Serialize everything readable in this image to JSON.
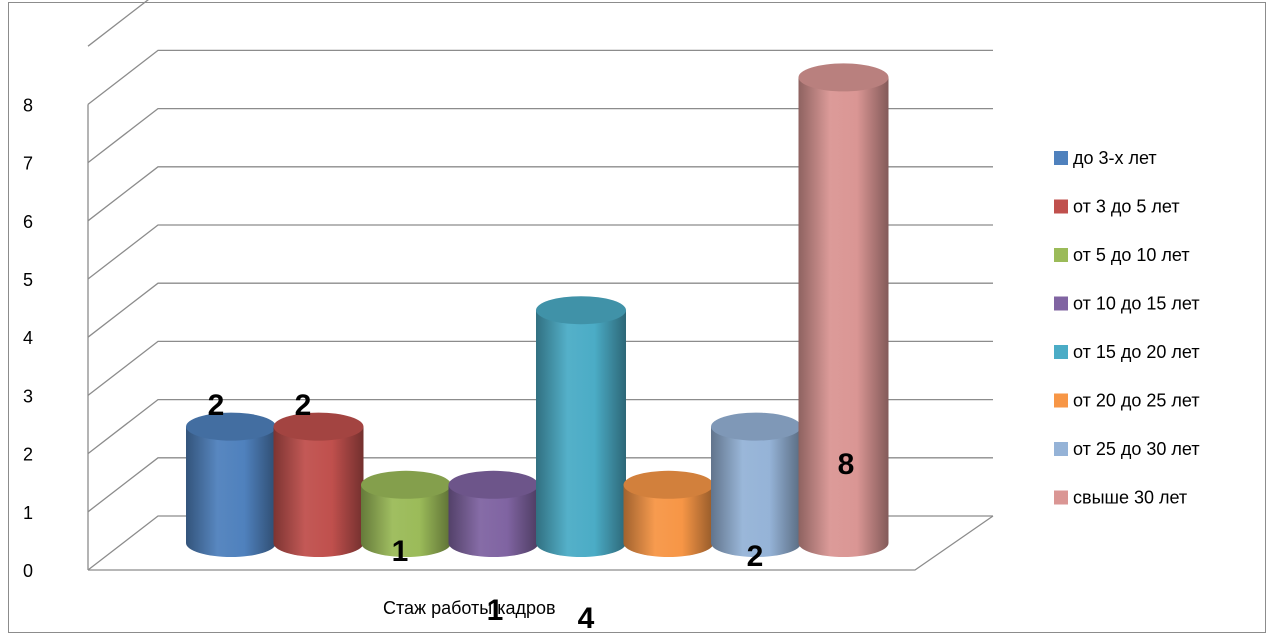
{
  "chart_data": {
    "type": "bar",
    "xlabel": "Стаж работы кадров",
    "ylim": [
      0,
      8
    ],
    "yticks": [
      "0",
      "1",
      "2",
      "3",
      "4",
      "5",
      "6",
      "7",
      "8"
    ],
    "series": [
      {
        "name": "до 3-х лет",
        "value": 2,
        "color": "#4f81bd",
        "label": "2"
      },
      {
        "name": "от 3 до 5 лет",
        "value": 2,
        "color": "#c0504d",
        "label": "2"
      },
      {
        "name": "от 5 до 10 лет",
        "value": 1,
        "color": "#9bbb59",
        "label": "1"
      },
      {
        "name": "от 10 до 15 лет",
        "value": 1,
        "color": "#8064a2",
        "label": "1"
      },
      {
        "name": "от 15 до 20 лет",
        "value": 4,
        "color": "#4bacc6",
        "label": "4"
      },
      {
        "name": "от 20 до 25 лет",
        "value": 1,
        "color": "#f79646",
        "label": ""
      },
      {
        "name": "от 25 до 30 лет",
        "value": 2,
        "color": "#95b3d7",
        "label": "2"
      },
      {
        "name": "свыше 30 лет",
        "value": 8,
        "color": "#da9694",
        "label": "8"
      }
    ],
    "legend_position": "right",
    "grid": true
  }
}
